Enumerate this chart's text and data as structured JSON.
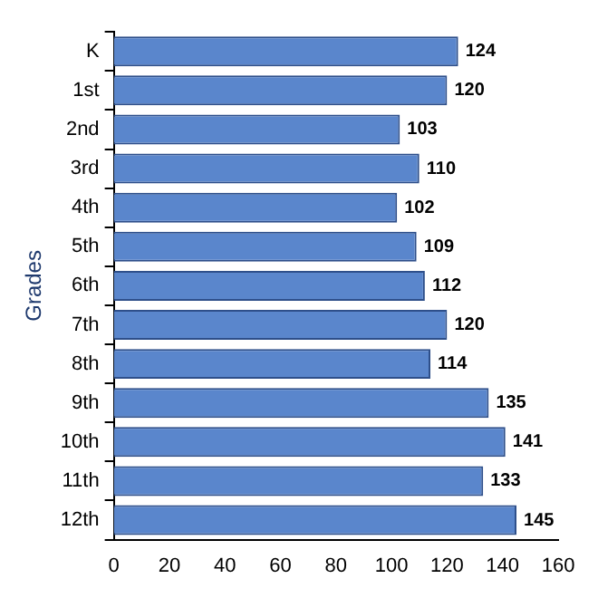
{
  "chart_data": {
    "type": "bar",
    "orientation": "horizontal",
    "ylabel": "Grades",
    "categories": [
      "K",
      "1st",
      "2nd",
      "3rd",
      "4th",
      "5th",
      "6th",
      "7th",
      "8th",
      "9th",
      "10th",
      "11th",
      "12th"
    ],
    "values": [
      124,
      120,
      103,
      110,
      102,
      109,
      112,
      120,
      114,
      135,
      141,
      133,
      145
    ],
    "color": "#5a86cc",
    "xlim": [
      0,
      160
    ],
    "xticks": [
      0,
      20,
      40,
      60,
      80,
      100,
      120,
      140,
      160
    ],
    "grid": false,
    "legend": false,
    "data_labels": true
  }
}
